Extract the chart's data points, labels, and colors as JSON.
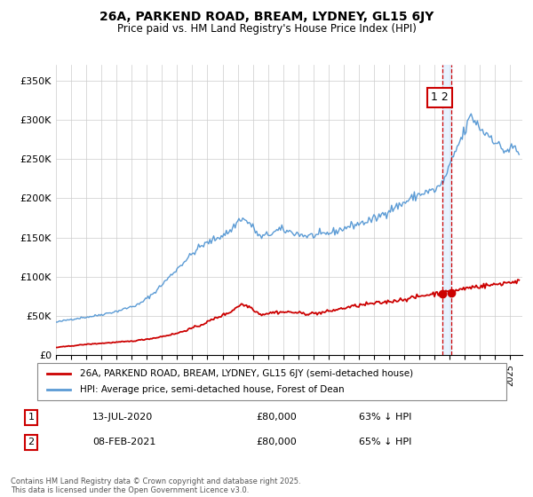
{
  "title1": "26A, PARKEND ROAD, BREAM, LYDNEY, GL15 6JY",
  "title2": "Price paid vs. HM Land Registry's House Price Index (HPI)",
  "ylabel_ticks": [
    "£0",
    "£50K",
    "£100K",
    "£150K",
    "£200K",
    "£250K",
    "£300K",
    "£350K"
  ],
  "ytick_vals": [
    0,
    50000,
    100000,
    150000,
    200000,
    250000,
    300000,
    350000
  ],
  "ylim": [
    0,
    370000
  ],
  "xlim_start": 1995.0,
  "xlim_end": 2025.8,
  "hpi_color": "#5b9bd5",
  "price_color": "#cc0000",
  "dashed_color": "#cc0000",
  "band_color": "#ddeeff",
  "bg_color": "#ffffff",
  "grid_color": "#cccccc",
  "transaction1_date": "13-JUL-2020",
  "transaction1_price": "£80,000",
  "transaction1_note": "63% ↓ HPI",
  "transaction2_date": "08-FEB-2021",
  "transaction2_price": "£80,000",
  "transaction2_note": "65% ↓ HPI",
  "legend_label_price": "26A, PARKEND ROAD, BREAM, LYDNEY, GL15 6JY (semi-detached house)",
  "legend_label_hpi": "HPI: Average price, semi-detached house, Forest of Dean",
  "footer": "Contains HM Land Registry data © Crown copyright and database right 2025.\nThis data is licensed under the Open Government Licence v3.0.",
  "hpi_anchors": [
    [
      1995.0,
      42000
    ],
    [
      1996.0,
      46000
    ],
    [
      1997.5,
      50000
    ],
    [
      1999.0,
      56000
    ],
    [
      2000.5,
      65000
    ],
    [
      2001.5,
      80000
    ],
    [
      2002.5,
      100000
    ],
    [
      2003.5,
      120000
    ],
    [
      2004.5,
      138000
    ],
    [
      2005.5,
      148000
    ],
    [
      2006.5,
      158000
    ],
    [
      2007.2,
      175000
    ],
    [
      2007.8,
      168000
    ],
    [
      2008.5,
      150000
    ],
    [
      2009.2,
      155000
    ],
    [
      2009.8,
      160000
    ],
    [
      2010.5,
      157000
    ],
    [
      2011.5,
      152000
    ],
    [
      2012.5,
      153000
    ],
    [
      2013.5,
      158000
    ],
    [
      2014.5,
      165000
    ],
    [
      2015.5,
      170000
    ],
    [
      2016.2,
      175000
    ],
    [
      2017.0,
      185000
    ],
    [
      2017.8,
      192000
    ],
    [
      2018.5,
      200000
    ],
    [
      2019.0,
      205000
    ],
    [
      2019.5,
      208000
    ],
    [
      2020.0,
      210000
    ],
    [
      2020.5,
      218000
    ],
    [
      2021.0,
      240000
    ],
    [
      2021.5,
      265000
    ],
    [
      2022.0,
      285000
    ],
    [
      2022.4,
      305000
    ],
    [
      2022.8,
      295000
    ],
    [
      2023.2,
      285000
    ],
    [
      2023.8,
      278000
    ],
    [
      2024.3,
      265000
    ],
    [
      2024.7,
      260000
    ],
    [
      2025.3,
      265000
    ],
    [
      2025.6,
      255000
    ]
  ],
  "price_anchors": [
    [
      1995.0,
      10000
    ],
    [
      1996.0,
      12000
    ],
    [
      1997.0,
      14000
    ],
    [
      1998.5,
      16000
    ],
    [
      2000.0,
      18000
    ],
    [
      2001.5,
      22000
    ],
    [
      2003.0,
      28000
    ],
    [
      2004.5,
      38000
    ],
    [
      2005.5,
      47000
    ],
    [
      2006.5,
      55000
    ],
    [
      2007.2,
      65000
    ],
    [
      2007.8,
      62000
    ],
    [
      2008.5,
      52000
    ],
    [
      2009.5,
      55000
    ],
    [
      2010.5,
      55000
    ],
    [
      2011.5,
      53000
    ],
    [
      2012.5,
      54000
    ],
    [
      2013.5,
      58000
    ],
    [
      2014.5,
      62000
    ],
    [
      2015.5,
      65000
    ],
    [
      2016.5,
      67000
    ],
    [
      2017.5,
      70000
    ],
    [
      2018.5,
      73000
    ],
    [
      2019.5,
      77000
    ],
    [
      2020.5,
      80000
    ],
    [
      2021.0,
      80000
    ],
    [
      2021.3,
      82000
    ],
    [
      2022.0,
      85000
    ],
    [
      2022.5,
      87000
    ],
    [
      2023.0,
      88000
    ],
    [
      2023.5,
      89000
    ],
    [
      2024.0,
      90000
    ],
    [
      2024.5,
      92000
    ],
    [
      2025.0,
      93000
    ],
    [
      2025.6,
      95000
    ]
  ]
}
